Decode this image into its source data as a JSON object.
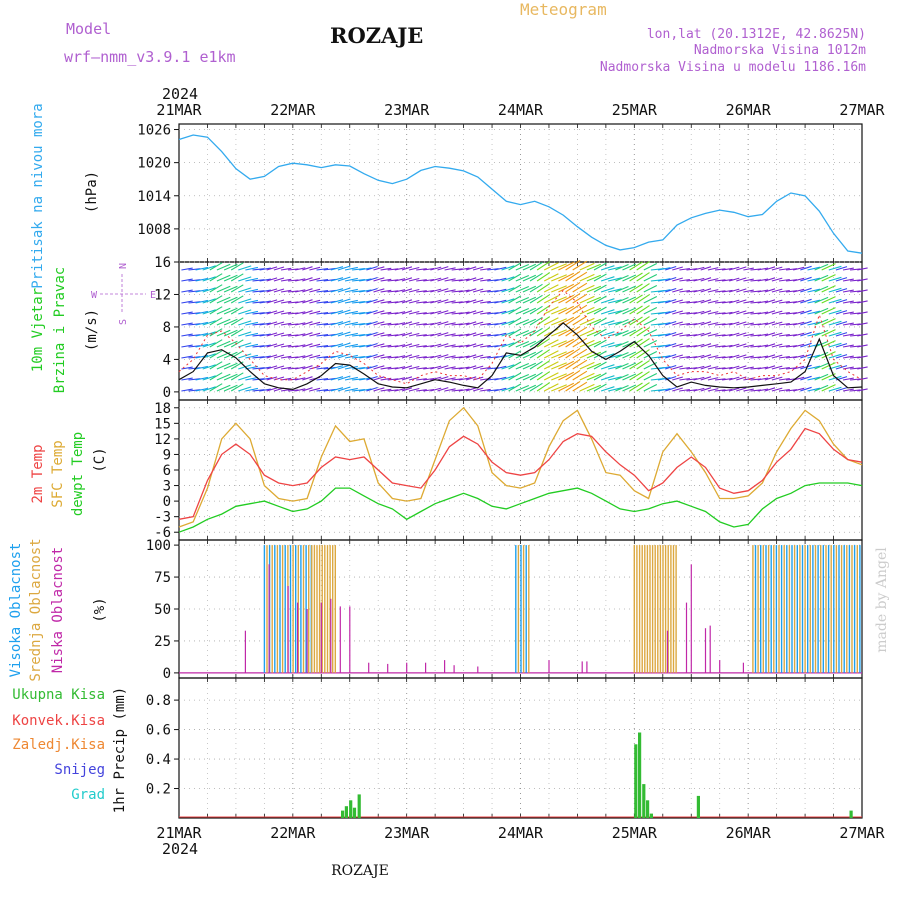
{
  "header": {
    "model_label": "Model",
    "model_name": "wrf—nmm_v3.9.1  e1km",
    "station": "ROZAJE",
    "product": "Meteogram",
    "lonlat": "lon,lat (20.1312E, 42.8625N)",
    "elevation": "Nadmorska Visina 1012m",
    "model_elevation": "Nadmorska Visina u modelu 1186.16m",
    "footer_station": "ROZAJE",
    "credit": "made by Angel"
  },
  "colors": {
    "pressure": "#33aaee",
    "wind_title": "#22cc22",
    "temp2m": "#ee4444",
    "sfc": "#ddaa33",
    "dewpt": "#22cc22",
    "cloud_high": "#1ea0ee",
    "cloud_mid": "#dca840",
    "cloud_low": "#c028a8",
    "rain_total": "#33bb33",
    "rain_conv": "#ee4444",
    "rain_freez": "#ee8833",
    "snow": "#4444dd",
    "hail": "#22cccc",
    "header_purple": "#b060d0",
    "header_orange": "#e8b860"
  },
  "chart_data": [
    {
      "panel": "pressure",
      "type": "line",
      "ylabel_title": "Pritisak na nivou mora",
      "unit": "(hPa)",
      "ylim": [
        1002,
        1027
      ],
      "yticks": [
        1008,
        1014,
        1020,
        1026
      ],
      "x": [
        0,
        3,
        6,
        9,
        12,
        15,
        18,
        21,
        24,
        27,
        30,
        33,
        36,
        39,
        42,
        45,
        48,
        51,
        54,
        57,
        60,
        63,
        66,
        69,
        72,
        75,
        78,
        81,
        84,
        87,
        90,
        93,
        96,
        99,
        102,
        105,
        108,
        111,
        114,
        117,
        120,
        123,
        126,
        129,
        132,
        135,
        138,
        141,
        144
      ],
      "values": [
        1024.2,
        1025.0,
        1024.6,
        1022.0,
        1018.9,
        1017.0,
        1017.5,
        1019.3,
        1019.9,
        1019.6,
        1019.1,
        1019.6,
        1019.4,
        1018.0,
        1016.8,
        1016.2,
        1017.0,
        1018.6,
        1019.3,
        1019.0,
        1018.5,
        1017.4,
        1015.2,
        1013.0,
        1012.4,
        1013.0,
        1012.0,
        1010.5,
        1008.4,
        1006.5,
        1005.0,
        1004.2,
        1004.6,
        1005.6,
        1006.0,
        1008.7,
        1010.0,
        1010.8,
        1011.4,
        1011.0,
        1010.2,
        1010.6,
        1013.0,
        1014.5,
        1014.0,
        1011.2,
        1007.2,
        1004.0,
        1003.6
      ]
    },
    {
      "panel": "wind",
      "type": "line",
      "ylabel_title": "10m Vjetar Brzina i Pravac",
      "unit": "(m/s)",
      "ylim": [
        -1,
        16
      ],
      "yticks": [
        0,
        4,
        8,
        12,
        16
      ],
      "direction_legend": [
        "N",
        "S",
        "W",
        "E"
      ],
      "x": [
        0,
        3,
        6,
        9,
        12,
        15,
        18,
        21,
        24,
        27,
        30,
        33,
        36,
        39,
        42,
        45,
        48,
        51,
        54,
        57,
        60,
        63,
        66,
        69,
        72,
        75,
        78,
        81,
        84,
        87,
        90,
        93,
        96,
        99,
        102,
        105,
        108,
        111,
        114,
        117,
        120,
        123,
        126,
        129,
        132,
        135,
        138,
        141,
        144
      ],
      "series": [
        {
          "key": "speed",
          "values": [
            1.5,
            2.5,
            4.8,
            5.2,
            4.2,
            2.5,
            1.0,
            0.5,
            0.3,
            1.0,
            2.0,
            3.5,
            3.3,
            2.2,
            1.0,
            0.6,
            0.5,
            1.0,
            1.5,
            1.2,
            0.8,
            0.5,
            2.0,
            4.8,
            4.5,
            5.5,
            7.0,
            8.5,
            7.0,
            5.0,
            4.0,
            5.0,
            6.2,
            4.5,
            2.0,
            0.6,
            1.2,
            0.8,
            0.6,
            0.5,
            0.6,
            0.8,
            1.0,
            1.2,
            2.5,
            6.5,
            2.0,
            0.5,
            0.6
          ]
        },
        {
          "key": "gust",
          "values": [
            2.5,
            4.0,
            7.0,
            7.5,
            6.0,
            4.0,
            2.0,
            1.5,
            1.5,
            2.5,
            3.5,
            5.0,
            4.5,
            3.5,
            2.0,
            1.5,
            1.0,
            2.0,
            2.5,
            2.0,
            2.0,
            1.5,
            3.5,
            7.0,
            6.0,
            7.5,
            10.5,
            12.5,
            11.0,
            8.0,
            6.5,
            7.5,
            9.0,
            7.5,
            4.0,
            2.0,
            2.5,
            2.5,
            2.0,
            2.5,
            1.5,
            2.0,
            2.0,
            2.5,
            4.0,
            9.5,
            4.0,
            2.5,
            1.5
          ]
        }
      ]
    },
    {
      "panel": "temperature",
      "type": "line",
      "ylabel_title": [
        "2m Temp",
        "SFC Temp",
        "dewpt Temp"
      ],
      "unit": "(C)",
      "ylim": [
        -7.5,
        19.5
      ],
      "yticks": [
        -6,
        -3,
        0,
        3,
        6,
        9,
        12,
        15,
        18
      ],
      "x": [
        0,
        3,
        6,
        9,
        12,
        15,
        18,
        21,
        24,
        27,
        30,
        33,
        36,
        39,
        42,
        45,
        48,
        51,
        54,
        57,
        60,
        63,
        66,
        69,
        72,
        75,
        78,
        81,
        84,
        87,
        90,
        93,
        96,
        99,
        102,
        105,
        108,
        111,
        114,
        117,
        120,
        123,
        126,
        129,
        132,
        135,
        138,
        141,
        144
      ],
      "series": [
        {
          "key": "t2m",
          "values": [
            -3.5,
            -3.0,
            4.0,
            9.0,
            11.0,
            9.0,
            5.0,
            3.5,
            3.0,
            3.5,
            6.5,
            8.5,
            8.0,
            8.5,
            6.0,
            3.5,
            3.0,
            2.5,
            6.0,
            10.5,
            12.5,
            11.0,
            7.5,
            5.5,
            5.0,
            5.5,
            8.0,
            11.5,
            13.0,
            12.5,
            9.5,
            7.0,
            5.0,
            2.0,
            3.5,
            6.5,
            8.5,
            6.5,
            2.5,
            1.5,
            2.0,
            4.0,
            7.5,
            10.0,
            14.0,
            13.0,
            10.0,
            8.0,
            7.5
          ]
        },
        {
          "key": "sfc",
          "values": [
            -5.0,
            -4.0,
            2.5,
            12.0,
            15.0,
            12.0,
            3.0,
            0.5,
            0.0,
            0.5,
            8.5,
            14.5,
            11.5,
            12.0,
            3.5,
            0.5,
            0.0,
            0.5,
            8.0,
            15.5,
            18.0,
            14.5,
            5.5,
            3.0,
            2.5,
            3.5,
            10.5,
            15.5,
            17.5,
            12.0,
            5.5,
            5.0,
            2.0,
            0.5,
            9.5,
            13.0,
            9.5,
            5.5,
            0.5,
            0.5,
            1.0,
            3.5,
            9.5,
            14.0,
            17.5,
            15.5,
            11.0,
            8.0,
            7.0
          ]
        },
        {
          "key": "dewpt",
          "values": [
            -6.0,
            -5.0,
            -3.5,
            -2.5,
            -1.0,
            -0.5,
            0.0,
            -1.0,
            -2.0,
            -1.5,
            0.0,
            2.5,
            2.5,
            1.0,
            -0.5,
            -1.5,
            -3.5,
            -2.0,
            -0.5,
            0.5,
            1.5,
            0.5,
            -1.0,
            -1.5,
            -0.5,
            0.5,
            1.5,
            2.0,
            2.5,
            1.5,
            0.0,
            -1.5,
            -2.0,
            -1.5,
            -0.5,
            0.0,
            -1.0,
            -2.0,
            -4.0,
            -5.0,
            -4.5,
            -1.5,
            0.5,
            1.5,
            3.0,
            3.5,
            3.5,
            3.5,
            3.0
          ]
        }
      ]
    },
    {
      "panel": "clouds",
      "type": "bar",
      "ylabel_title": [
        "Visoka Oblacnost",
        "Srednja Oblacnost",
        "Niska Oblacnost"
      ],
      "unit": "(%)",
      "ylim": [
        -4,
        104
      ],
      "yticks": [
        0,
        25,
        50,
        75,
        100
      ],
      "blocks": [
        {
          "from": 18,
          "to": 28,
          "high": 100,
          "mid": 100
        },
        {
          "from": 28,
          "to": 33,
          "mid": 100
        },
        {
          "from": 71,
          "to": 74,
          "high": 100,
          "mid": 100
        },
        {
          "from": 96,
          "to": 105,
          "mid": 100
        },
        {
          "from": 121,
          "to": 144,
          "high": 100,
          "mid": 100
        }
      ],
      "low_spikes": [
        {
          "x": 14,
          "v": 33
        },
        {
          "x": 19,
          "v": 85
        },
        {
          "x": 23,
          "v": 68
        },
        {
          "x": 25,
          "v": 55
        },
        {
          "x": 27,
          "v": 50
        },
        {
          "x": 30,
          "v": 55
        },
        {
          "x": 32,
          "v": 58
        },
        {
          "x": 34,
          "v": 52
        },
        {
          "x": 36,
          "v": 52
        },
        {
          "x": 40,
          "v": 8
        },
        {
          "x": 44,
          "v": 7
        },
        {
          "x": 48,
          "v": 8
        },
        {
          "x": 52,
          "v": 8
        },
        {
          "x": 56,
          "v": 10
        },
        {
          "x": 58,
          "v": 6
        },
        {
          "x": 63,
          "v": 5
        },
        {
          "x": 78,
          "v": 10
        },
        {
          "x": 85,
          "v": 9
        },
        {
          "x": 86,
          "v": 9
        },
        {
          "x": 103,
          "v": 33
        },
        {
          "x": 107,
          "v": 55
        },
        {
          "x": 108,
          "v": 85
        },
        {
          "x": 111,
          "v": 35
        },
        {
          "x": 112,
          "v": 37
        },
        {
          "x": 114,
          "v": 10
        },
        {
          "x": 119,
          "v": 8
        }
      ]
    },
    {
      "panel": "precip",
      "type": "bar",
      "ylabel_title": "1hr Precip (mm)",
      "legend": [
        "Ukupna Kisa",
        "Konvek.Kisa",
        "Zaledj.Kisa",
        "Snijeg",
        "Grad"
      ],
      "ylim": [
        0,
        0.95
      ],
      "yticks": [
        0.2,
        0.4,
        0.6,
        0.8
      ],
      "bars": [
        {
          "x": 34.5,
          "v": 0.05
        },
        {
          "x": 35.3,
          "v": 0.08
        },
        {
          "x": 36.2,
          "v": 0.12
        },
        {
          "x": 37.0,
          "v": 0.07
        },
        {
          "x": 38.0,
          "v": 0.16
        },
        {
          "x": 96.3,
          "v": 0.5
        },
        {
          "x": 97.1,
          "v": 0.58
        },
        {
          "x": 98.0,
          "v": 0.23
        },
        {
          "x": 98.8,
          "v": 0.12
        },
        {
          "x": 99.6,
          "v": 0.03
        },
        {
          "x": 109.5,
          "v": 0.15
        },
        {
          "x": 141.7,
          "v": 0.05
        }
      ]
    }
  ],
  "x_axis": {
    "year": "2024",
    "labels": [
      "21MAR",
      "22MAR",
      "23MAR",
      "24MAR",
      "25MAR",
      "26MAR",
      "27MAR"
    ],
    "hours_total": 144
  }
}
